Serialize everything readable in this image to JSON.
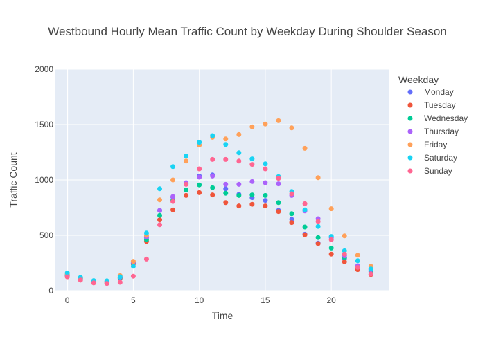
{
  "chart_data": {
    "type": "scatter",
    "title": "Westbound Hourly Mean Traffic Count by Weekday During Shoulder Season",
    "xlabel": "Time",
    "ylabel": "Traffic Count",
    "xlim": [
      -0.9,
      24.4
    ],
    "ylim": [
      0,
      2000
    ],
    "xticks": [
      0,
      5,
      10,
      15,
      20
    ],
    "yticks": [
      0,
      500,
      1000,
      1500,
      2000
    ],
    "grid": true,
    "legend_title": "Weekday",
    "legend_position": "right",
    "x": [
      0,
      1,
      2,
      3,
      4,
      5,
      6,
      7,
      8,
      9,
      10,
      11,
      12,
      13,
      14,
      15,
      16,
      17,
      18,
      19,
      20,
      21,
      22,
      23
    ],
    "series": [
      {
        "name": "Monday",
        "color": "#636efa",
        "values": [
          135,
          105,
          80,
          78,
          120,
          245,
          480,
          725,
          845,
          965,
          1035,
          1045,
          920,
          870,
          840,
          815,
          725,
          645,
          510,
          430,
          480,
          290,
          210,
          170
        ]
      },
      {
        "name": "Tuesday",
        "color": "#ef553b",
        "values": [
          125,
          95,
          70,
          68,
          110,
          240,
          445,
          640,
          730,
          860,
          885,
          865,
          795,
          765,
          780,
          765,
          715,
          615,
          505,
          425,
          330,
          260,
          190,
          145
        ]
      },
      {
        "name": "Wednesday",
        "color": "#00cc96",
        "values": [
          140,
          110,
          80,
          80,
          118,
          250,
          460,
          680,
          815,
          910,
          955,
          930,
          880,
          860,
          865,
          860,
          795,
          695,
          575,
          480,
          385,
          300,
          220,
          180
        ]
      },
      {
        "name": "Thursday",
        "color": "#ab63fa",
        "values": [
          145,
          110,
          82,
          82,
          122,
          255,
          485,
          725,
          850,
          975,
          1025,
          1035,
          960,
          960,
          985,
          975,
          965,
          860,
          720,
          650,
          485,
          315,
          225,
          190
        ]
      },
      {
        "name": "Friday",
        "color": "#ffa15a",
        "values": [
          150,
          115,
          85,
          85,
          135,
          265,
          500,
          820,
          1000,
          1170,
          1315,
          1385,
          1370,
          1410,
          1480,
          1505,
          1535,
          1470,
          1285,
          1020,
          740,
          495,
          320,
          220
        ]
      },
      {
        "name": "Saturday",
        "color": "#19d3f3",
        "values": [
          160,
          120,
          90,
          88,
          125,
          220,
          520,
          920,
          1120,
          1215,
          1340,
          1400,
          1320,
          1245,
          1190,
          1145,
          1030,
          895,
          730,
          580,
          490,
          360,
          270,
          195
        ]
      },
      {
        "name": "Sunday",
        "color": "#ff6692",
        "values": [
          125,
          95,
          70,
          65,
          75,
          130,
          285,
          595,
          805,
          960,
          1100,
          1185,
          1185,
          1170,
          1140,
          1100,
          1015,
          875,
          785,
          625,
          460,
          330,
          210,
          150
        ]
      }
    ]
  }
}
